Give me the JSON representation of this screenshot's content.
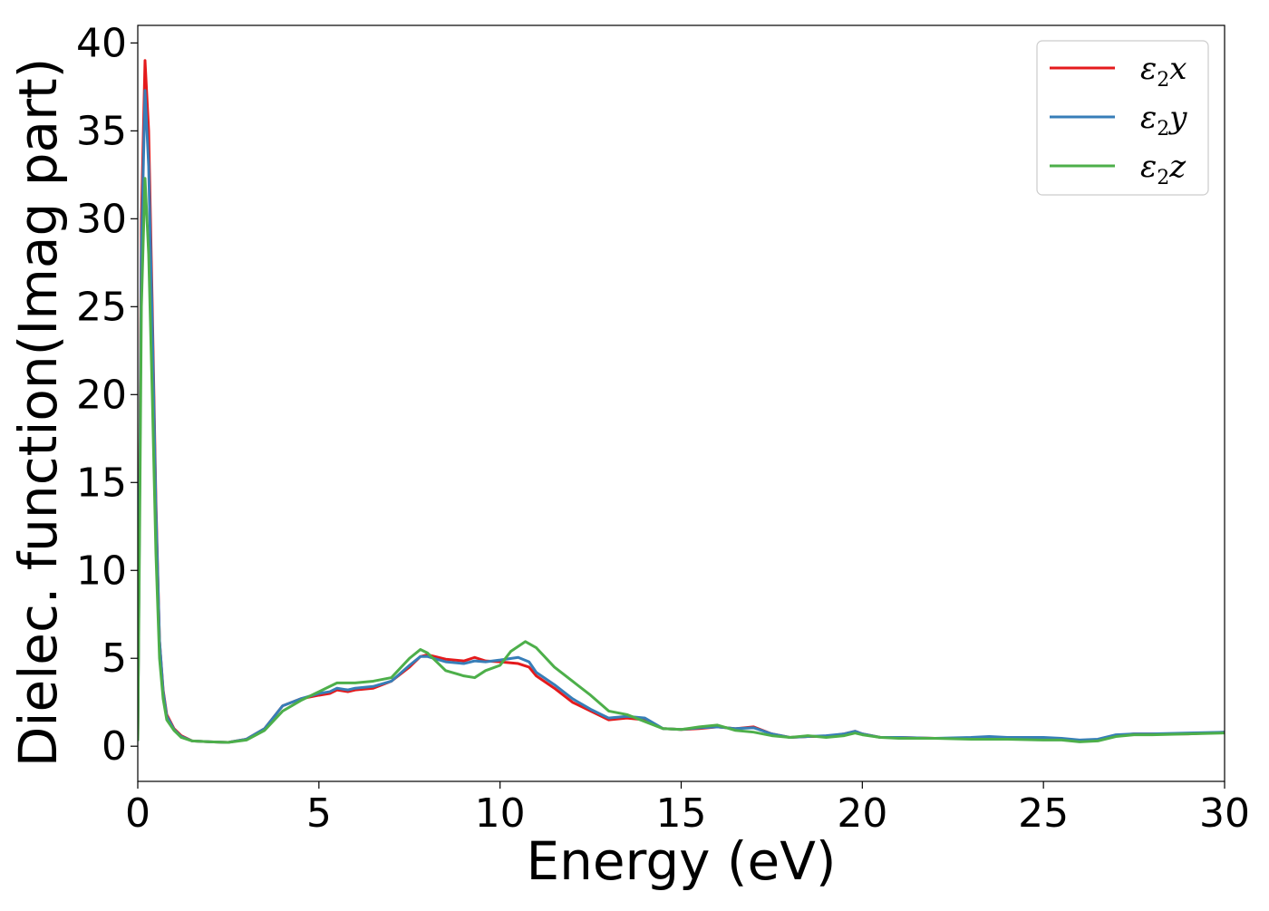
{
  "chart_data": {
    "type": "line",
    "title": "",
    "xlabel": "Energy (eV)",
    "ylabel": "Dielec. function(Imag part)",
    "xlim": [
      0,
      30
    ],
    "ylim": [
      -2,
      41
    ],
    "x_ticks": [
      "0",
      "5",
      "10",
      "15",
      "20",
      "25",
      "30"
    ],
    "y_ticks": [
      "0",
      "5",
      "10",
      "15",
      "20",
      "25",
      "30",
      "35",
      "40"
    ],
    "grid": false,
    "legend_position": "top-right",
    "series": [
      {
        "name": "ε2x",
        "name_base": "ε",
        "name_sub": "2",
        "name_tail": "x",
        "color": "#e41a1c",
        "points": [
          [
            0.0,
            0.3
          ],
          [
            0.05,
            15
          ],
          [
            0.1,
            30
          ],
          [
            0.2,
            39.0
          ],
          [
            0.3,
            35
          ],
          [
            0.4,
            25
          ],
          [
            0.5,
            14
          ],
          [
            0.6,
            6
          ],
          [
            0.7,
            3.2
          ],
          [
            0.8,
            1.8
          ],
          [
            1.0,
            1.0
          ],
          [
            1.2,
            0.6
          ],
          [
            1.5,
            0.3
          ],
          [
            2.0,
            0.25
          ],
          [
            2.5,
            0.22
          ],
          [
            3.0,
            0.4
          ],
          [
            3.5,
            1.0
          ],
          [
            4.0,
            2.3
          ],
          [
            4.5,
            2.7
          ],
          [
            5.0,
            2.9
          ],
          [
            5.3,
            3.0
          ],
          [
            5.5,
            3.2
          ],
          [
            5.8,
            3.1
          ],
          [
            6.0,
            3.2
          ],
          [
            6.5,
            3.3
          ],
          [
            7.0,
            3.7
          ],
          [
            7.5,
            4.5
          ],
          [
            7.8,
            5.1
          ],
          [
            8.0,
            5.2
          ],
          [
            8.5,
            4.95
          ],
          [
            9.0,
            4.85
          ],
          [
            9.3,
            5.05
          ],
          [
            9.6,
            4.85
          ],
          [
            10.0,
            4.8
          ],
          [
            10.5,
            4.7
          ],
          [
            10.8,
            4.5
          ],
          [
            11.0,
            4.0
          ],
          [
            11.5,
            3.3
          ],
          [
            12.0,
            2.5
          ],
          [
            12.5,
            2.0
          ],
          [
            13.0,
            1.5
          ],
          [
            13.5,
            1.6
          ],
          [
            14.0,
            1.5
          ],
          [
            14.5,
            1.0
          ],
          [
            15.0,
            0.95
          ],
          [
            15.5,
            1.0
          ],
          [
            16.0,
            1.1
          ],
          [
            16.5,
            1.0
          ],
          [
            17.0,
            1.1
          ],
          [
            17.5,
            0.7
          ],
          [
            18.0,
            0.5
          ],
          [
            18.5,
            0.55
          ],
          [
            19.0,
            0.55
          ],
          [
            19.5,
            0.7
          ],
          [
            19.8,
            0.85
          ],
          [
            20.0,
            0.7
          ],
          [
            20.5,
            0.5
          ],
          [
            21.0,
            0.5
          ],
          [
            22.0,
            0.45
          ],
          [
            23.0,
            0.45
          ],
          [
            23.5,
            0.5
          ],
          [
            24.0,
            0.45
          ],
          [
            25.0,
            0.45
          ],
          [
            25.5,
            0.4
          ],
          [
            26.0,
            0.3
          ],
          [
            26.5,
            0.35
          ],
          [
            27.0,
            0.6
          ],
          [
            27.5,
            0.7
          ],
          [
            28.0,
            0.7
          ],
          [
            29.0,
            0.7
          ],
          [
            30.0,
            0.8
          ]
        ]
      },
      {
        "name": "ε2y",
        "name_base": "ε",
        "name_sub": "2",
        "name_tail": "y",
        "color": "#377eb8",
        "points": [
          [
            0.0,
            0.3
          ],
          [
            0.05,
            14
          ],
          [
            0.1,
            28
          ],
          [
            0.2,
            37.3
          ],
          [
            0.3,
            33
          ],
          [
            0.4,
            24
          ],
          [
            0.5,
            13.5
          ],
          [
            0.6,
            6
          ],
          [
            0.7,
            3.1
          ],
          [
            0.8,
            1.7
          ],
          [
            1.0,
            0.95
          ],
          [
            1.2,
            0.55
          ],
          [
            1.5,
            0.3
          ],
          [
            2.0,
            0.25
          ],
          [
            2.5,
            0.22
          ],
          [
            3.0,
            0.4
          ],
          [
            3.5,
            1.0
          ],
          [
            4.0,
            2.3
          ],
          [
            4.5,
            2.7
          ],
          [
            5.0,
            3.0
          ],
          [
            5.3,
            3.1
          ],
          [
            5.5,
            3.3
          ],
          [
            5.8,
            3.2
          ],
          [
            6.0,
            3.3
          ],
          [
            6.5,
            3.4
          ],
          [
            7.0,
            3.7
          ],
          [
            7.5,
            4.6
          ],
          [
            7.8,
            5.1
          ],
          [
            8.0,
            5.1
          ],
          [
            8.5,
            4.8
          ],
          [
            9.0,
            4.7
          ],
          [
            9.3,
            4.85
          ],
          [
            9.6,
            4.8
          ],
          [
            10.0,
            4.9
          ],
          [
            10.5,
            5.05
          ],
          [
            10.8,
            4.8
          ],
          [
            11.0,
            4.2
          ],
          [
            11.5,
            3.5
          ],
          [
            12.0,
            2.7
          ],
          [
            12.5,
            2.1
          ],
          [
            13.0,
            1.6
          ],
          [
            13.5,
            1.7
          ],
          [
            14.0,
            1.6
          ],
          [
            14.5,
            1.0
          ],
          [
            15.0,
            0.95
          ],
          [
            15.5,
            1.05
          ],
          [
            16.0,
            1.1
          ],
          [
            16.5,
            1.0
          ],
          [
            17.0,
            1.05
          ],
          [
            17.5,
            0.7
          ],
          [
            18.0,
            0.5
          ],
          [
            18.5,
            0.55
          ],
          [
            19.0,
            0.6
          ],
          [
            19.5,
            0.7
          ],
          [
            19.8,
            0.85
          ],
          [
            20.0,
            0.7
          ],
          [
            20.5,
            0.5
          ],
          [
            21.0,
            0.5
          ],
          [
            22.0,
            0.45
          ],
          [
            23.0,
            0.5
          ],
          [
            23.5,
            0.55
          ],
          [
            24.0,
            0.5
          ],
          [
            25.0,
            0.5
          ],
          [
            25.5,
            0.45
          ],
          [
            26.0,
            0.35
          ],
          [
            26.5,
            0.4
          ],
          [
            27.0,
            0.65
          ],
          [
            27.5,
            0.7
          ],
          [
            28.0,
            0.7
          ],
          [
            29.0,
            0.75
          ],
          [
            30.0,
            0.8
          ]
        ]
      },
      {
        "name": "ε2z",
        "name_base": "ε",
        "name_sub": "2",
        "name_tail": "z",
        "color": "#4daf4a",
        "points": [
          [
            0.0,
            0.3
          ],
          [
            0.05,
            12
          ],
          [
            0.1,
            25
          ],
          [
            0.2,
            32.3
          ],
          [
            0.3,
            28
          ],
          [
            0.4,
            20
          ],
          [
            0.5,
            11
          ],
          [
            0.6,
            5
          ],
          [
            0.7,
            2.7
          ],
          [
            0.8,
            1.5
          ],
          [
            1.0,
            0.9
          ],
          [
            1.2,
            0.5
          ],
          [
            1.5,
            0.3
          ],
          [
            2.0,
            0.25
          ],
          [
            2.5,
            0.22
          ],
          [
            3.0,
            0.35
          ],
          [
            3.5,
            0.9
          ],
          [
            4.0,
            2.0
          ],
          [
            4.5,
            2.6
          ],
          [
            5.0,
            3.1
          ],
          [
            5.3,
            3.4
          ],
          [
            5.5,
            3.6
          ],
          [
            5.8,
            3.6
          ],
          [
            6.0,
            3.6
          ],
          [
            6.5,
            3.7
          ],
          [
            7.0,
            3.9
          ],
          [
            7.5,
            5.0
          ],
          [
            7.8,
            5.5
          ],
          [
            8.0,
            5.3
          ],
          [
            8.5,
            4.3
          ],
          [
            9.0,
            4.0
          ],
          [
            9.3,
            3.9
          ],
          [
            9.6,
            4.3
          ],
          [
            10.0,
            4.6
          ],
          [
            10.3,
            5.4
          ],
          [
            10.7,
            5.95
          ],
          [
            11.0,
            5.6
          ],
          [
            11.5,
            4.5
          ],
          [
            12.0,
            3.7
          ],
          [
            12.5,
            2.9
          ],
          [
            13.0,
            2.0
          ],
          [
            13.5,
            1.8
          ],
          [
            14.0,
            1.4
          ],
          [
            14.5,
            1.0
          ],
          [
            15.0,
            0.95
          ],
          [
            15.5,
            1.1
          ],
          [
            16.0,
            1.2
          ],
          [
            16.5,
            0.9
          ],
          [
            17.0,
            0.8
          ],
          [
            17.5,
            0.6
          ],
          [
            18.0,
            0.5
          ],
          [
            18.5,
            0.6
          ],
          [
            19.0,
            0.5
          ],
          [
            19.5,
            0.6
          ],
          [
            19.8,
            0.75
          ],
          [
            20.0,
            0.65
          ],
          [
            20.5,
            0.5
          ],
          [
            21.0,
            0.45
          ],
          [
            22.0,
            0.45
          ],
          [
            23.0,
            0.4
          ],
          [
            23.5,
            0.4
          ],
          [
            24.0,
            0.4
          ],
          [
            25.0,
            0.35
          ],
          [
            25.5,
            0.35
          ],
          [
            26.0,
            0.25
          ],
          [
            26.5,
            0.3
          ],
          [
            27.0,
            0.55
          ],
          [
            27.5,
            0.65
          ],
          [
            28.0,
            0.65
          ],
          [
            29.0,
            0.7
          ],
          [
            30.0,
            0.75
          ]
        ]
      }
    ]
  }
}
